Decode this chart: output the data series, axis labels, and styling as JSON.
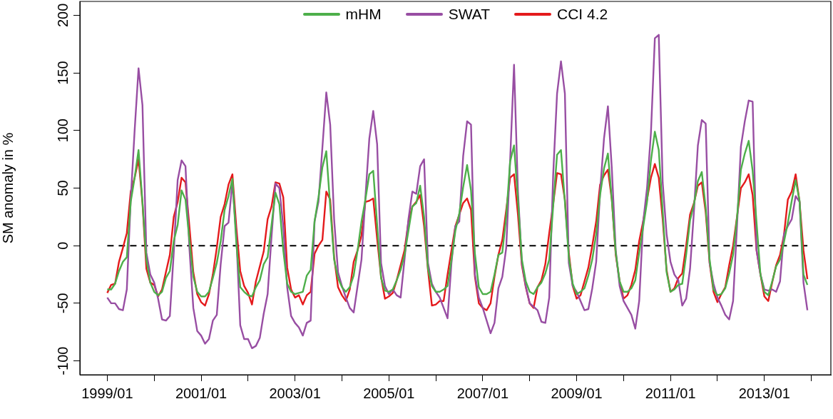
{
  "chart_data": {
    "type": "line",
    "ylabel": "SM anomaly in %",
    "x": [
      "1999-01",
      "1999-02",
      "1999-03",
      "1999-04",
      "1999-05",
      "1999-06",
      "1999-07",
      "1999-08",
      "1999-09",
      "1999-10",
      "1999-11",
      "1999-12",
      "2000-01",
      "2000-02",
      "2000-03",
      "2000-04",
      "2000-05",
      "2000-06",
      "2000-07",
      "2000-08",
      "2000-09",
      "2000-10",
      "2000-11",
      "2000-12",
      "2001-01",
      "2001-02",
      "2001-03",
      "2001-04",
      "2001-05",
      "2001-06",
      "2001-07",
      "2001-08",
      "2001-09",
      "2001-10",
      "2001-11",
      "2001-12",
      "2002-01",
      "2002-02",
      "2002-03",
      "2002-04",
      "2002-05",
      "2002-06",
      "2002-07",
      "2002-08",
      "2002-09",
      "2002-10",
      "2002-11",
      "2002-12",
      "2003-01",
      "2003-02",
      "2003-03",
      "2003-04",
      "2003-05",
      "2003-06",
      "2003-07",
      "2003-08",
      "2003-09",
      "2003-10",
      "2003-11",
      "2003-12",
      "2004-01",
      "2004-02",
      "2004-03",
      "2004-04",
      "2004-05",
      "2004-06",
      "2004-07",
      "2004-08",
      "2004-09",
      "2004-10",
      "2004-11",
      "2004-12",
      "2005-01",
      "2005-02",
      "2005-03",
      "2005-04",
      "2005-05",
      "2005-06",
      "2005-07",
      "2005-08",
      "2005-09",
      "2005-10",
      "2005-11",
      "2005-12",
      "2006-01",
      "2006-02",
      "2006-03",
      "2006-04",
      "2006-05",
      "2006-06",
      "2006-07",
      "2006-08",
      "2006-09",
      "2006-10",
      "2006-11",
      "2006-12",
      "2007-01",
      "2007-02",
      "2007-03",
      "2007-04",
      "2007-05",
      "2007-06",
      "2007-07",
      "2007-08",
      "2007-09",
      "2007-10",
      "2007-11",
      "2007-12",
      "2008-01",
      "2008-02",
      "2008-03",
      "2008-04",
      "2008-05",
      "2008-06",
      "2008-07",
      "2008-08",
      "2008-09",
      "2008-10",
      "2008-11",
      "2008-12",
      "2009-01",
      "2009-02",
      "2009-03",
      "2009-04",
      "2009-05",
      "2009-06",
      "2009-07",
      "2009-08",
      "2009-09",
      "2009-10",
      "2009-11",
      "2009-12",
      "2010-01",
      "2010-02",
      "2010-03",
      "2010-04",
      "2010-05",
      "2010-06",
      "2010-07",
      "2010-08",
      "2010-09",
      "2010-10",
      "2010-11",
      "2010-12",
      "2011-01",
      "2011-02",
      "2011-03",
      "2011-04",
      "2011-05",
      "2011-06",
      "2011-07",
      "2011-08",
      "2011-09",
      "2011-10",
      "2011-11",
      "2011-12",
      "2012-01",
      "2012-02",
      "2012-03",
      "2012-04",
      "2012-05",
      "2012-06",
      "2012-07",
      "2012-08",
      "2012-09",
      "2012-10",
      "2012-11",
      "2012-12",
      "2013-01",
      "2013-02",
      "2013-03",
      "2013-04",
      "2013-05",
      "2013-06",
      "2013-07",
      "2013-08",
      "2013-09",
      "2013-10",
      "2013-11",
      "2013-12"
    ],
    "series": [
      {
        "name": "mHM",
        "color": "#4daf4a",
        "values": [
          -38,
          -38,
          -33,
          -22,
          -14,
          -10,
          38,
          59,
          83,
          38,
          -12,
          -32,
          -40,
          -43,
          -40,
          -28,
          -22,
          4,
          18,
          48,
          40,
          5,
          -27,
          -40,
          -44,
          -44,
          -40,
          -28,
          -15,
          4,
          31,
          43,
          58,
          2,
          -36,
          -40,
          -43,
          -44,
          -36,
          -30,
          -16,
          -10,
          18,
          46,
          36,
          -4,
          -33,
          -40,
          -42,
          -41,
          -40,
          -26,
          -21,
          21,
          42,
          68,
          82,
          34,
          -12,
          -28,
          -36,
          -40,
          -36,
          -26,
          -4,
          21,
          40,
          62,
          65,
          18,
          -28,
          -39,
          -40,
          -38,
          -30,
          -21,
          -8,
          13,
          34,
          37,
          52,
          25,
          -20,
          -35,
          -40,
          -40,
          -38,
          -35,
          -12,
          13,
          28,
          51,
          70,
          48,
          -7,
          -36,
          -42,
          -42,
          -40,
          -25,
          -8,
          -6,
          25,
          73,
          87,
          40,
          -12,
          -31,
          -40,
          -42,
          -36,
          -32,
          -24,
          -12,
          34,
          79,
          83,
          38,
          -10,
          -33,
          -42,
          -40,
          -37,
          -26,
          -12,
          10,
          44,
          67,
          80,
          40,
          -6,
          -31,
          -40,
          -40,
          -37,
          -30,
          -6,
          16,
          38,
          74,
          99,
          83,
          30,
          -23,
          -40,
          -38,
          -34,
          -33,
          -8,
          22,
          36,
          56,
          64,
          33,
          -12,
          -38,
          -43,
          -42,
          -37,
          -24,
          -8,
          24,
          66,
          80,
          91,
          65,
          20,
          -25,
          -40,
          -43,
          -31,
          -18,
          -12,
          3,
          20,
          39,
          57,
          39,
          -25,
          -34
        ]
      },
      {
        "name": "SWAT",
        "color": "#984ea3",
        "values": [
          -45,
          -50,
          -50,
          -55,
          -56,
          -38,
          40,
          100,
          154,
          122,
          -6,
          -25,
          -32,
          -46,
          -64,
          -65,
          -61,
          -6,
          57,
          74,
          69,
          -2,
          -54,
          -74,
          -78,
          -85,
          -81,
          -65,
          -60,
          -16,
          17,
          20,
          55,
          8,
          -69,
          -81,
          -81,
          -89,
          -87,
          -80,
          -59,
          -42,
          8,
          54,
          50,
          17,
          -36,
          -61,
          -67,
          -71,
          -78,
          -67,
          -65,
          21,
          38,
          85,
          133,
          105,
          23,
          -23,
          -35,
          -45,
          -54,
          -58,
          -35,
          -12,
          42,
          93,
          117,
          88,
          -15,
          -35,
          -42,
          -38,
          -43,
          -45,
          -12,
          23,
          47,
          45,
          69,
          75,
          -15,
          -33,
          -40,
          -45,
          -54,
          -63,
          -15,
          17,
          21,
          78,
          108,
          105,
          -25,
          -45,
          -54,
          -65,
          -76,
          -67,
          -37,
          -27,
          -2,
          74,
          157,
          47,
          -15,
          -35,
          -50,
          -53,
          -56,
          -66,
          -67,
          -45,
          61,
          132,
          160,
          132,
          -15,
          -35,
          -40,
          -48,
          -56,
          -55,
          -37,
          -14,
          47,
          93,
          121,
          67,
          -4,
          -35,
          -48,
          -54,
          -60,
          -72,
          -48,
          20,
          50,
          98,
          180,
          183,
          55,
          10,
          -14,
          -25,
          -30,
          -52,
          -46,
          -20,
          30,
          87,
          109,
          106,
          -15,
          -33,
          -45,
          -52,
          -60,
          -64,
          -48,
          17,
          86,
          108,
          126,
          125,
          -4,
          -25,
          -38,
          -39,
          -38,
          -40,
          -31,
          10,
          17,
          23,
          43,
          38,
          -32,
          -56
        ]
      },
      {
        "name": "CCI 4.2",
        "color": "#e41a1c",
        "values": [
          -41,
          -34,
          -33,
          -14,
          -2,
          11,
          47,
          59,
          75,
          37,
          -20,
          -32,
          -34,
          -44,
          -38,
          -23,
          -8,
          25,
          38,
          59,
          55,
          17,
          -23,
          -42,
          -49,
          -52,
          -42,
          -25,
          -2,
          25,
          36,
          53,
          62,
          16,
          -22,
          -35,
          -41,
          -51,
          -31,
          -18,
          -5,
          23,
          34,
          55,
          54,
          42,
          -19,
          -38,
          -45,
          -43,
          -51,
          -43,
          -40,
          -7,
          0,
          5,
          47,
          40,
          -10,
          -36,
          -43,
          -48,
          -38,
          -14,
          -4,
          9,
          38,
          39,
          41,
          6,
          -27,
          -46,
          -44,
          -41,
          -30,
          -17,
          -4,
          21,
          34,
          38,
          44,
          17,
          -21,
          -52,
          -51,
          -48,
          -48,
          -25,
          -4,
          17,
          27,
          37,
          41,
          31,
          -27,
          -50,
          -54,
          -56,
          -50,
          -27,
          -8,
          5,
          31,
          59,
          62,
          27,
          -17,
          -36,
          -50,
          -54,
          -36,
          -30,
          -16,
          11,
          36,
          63,
          62,
          40,
          -6,
          -35,
          -46,
          -43,
          -31,
          -19,
          0,
          21,
          53,
          61,
          66,
          40,
          -8,
          -31,
          -46,
          -43,
          -34,
          -21,
          4,
          21,
          40,
          59,
          71,
          59,
          23,
          -21,
          -40,
          -37,
          -28,
          -24,
          0,
          27,
          37,
          52,
          55,
          29,
          -15,
          -40,
          -49,
          -42,
          -36,
          -17,
          0,
          25,
          50,
          55,
          62,
          44,
          -4,
          -25,
          -44,
          -48,
          -32,
          -17,
          -8,
          9,
          40,
          47,
          62,
          38,
          -4,
          -29
        ]
      }
    ],
    "xlim": [
      "1998-06",
      "2014-06"
    ],
    "xticks": [
      {
        "value": "1999-01",
        "label": "1999/01"
      },
      {
        "value": "2000-01",
        "label": null
      },
      {
        "value": "2001-01",
        "label": "2001/01"
      },
      {
        "value": "2002-01",
        "label": null
      },
      {
        "value": "2003-01",
        "label": "2003/01"
      },
      {
        "value": "2004-01",
        "label": null
      },
      {
        "value": "2005-01",
        "label": "2005/01"
      },
      {
        "value": "2006-01",
        "label": null
      },
      {
        "value": "2007-01",
        "label": "2007/01"
      },
      {
        "value": "2008-01",
        "label": null
      },
      {
        "value": "2009-01",
        "label": "2009/01"
      },
      {
        "value": "2010-01",
        "label": null
      },
      {
        "value": "2011-01",
        "label": "2011/01"
      },
      {
        "value": "2012-01",
        "label": null
      },
      {
        "value": "2013-01",
        "label": "2013/01"
      },
      {
        "value": "2014-01",
        "label": null
      }
    ],
    "ylim": [
      -112,
      212
    ],
    "yticks": [
      -100,
      -50,
      0,
      50,
      100,
      150,
      200
    ],
    "ref_lines": [
      {
        "axis": "y",
        "value": 0,
        "color": "#000000",
        "line_style": "dashed"
      }
    ],
    "legend": "top"
  }
}
